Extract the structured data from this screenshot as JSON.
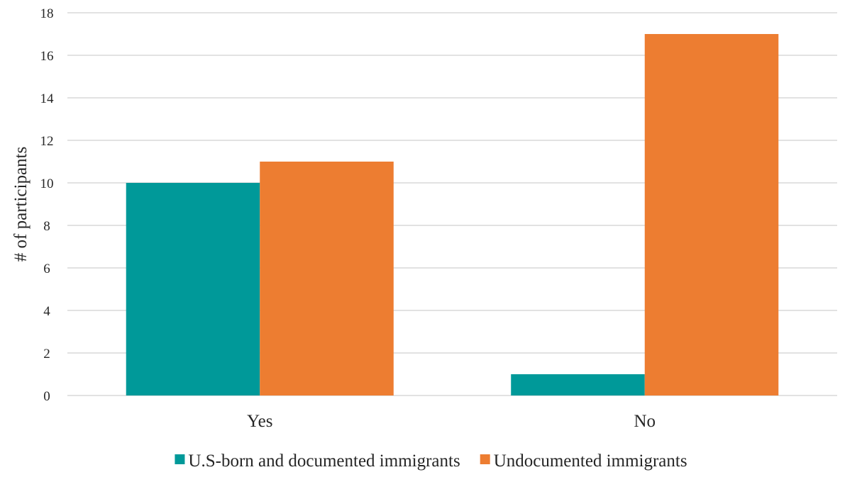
{
  "chart_data": {
    "type": "bar",
    "title": "",
    "xlabel": "",
    "ylabel": "# of participants",
    "ylim": [
      0,
      18
    ],
    "yticks": [
      0,
      2,
      4,
      6,
      8,
      10,
      12,
      14,
      16,
      18
    ],
    "categories": [
      "Yes",
      "No"
    ],
    "series": [
      {
        "name": "U.S-born and documented immigrants",
        "color": "#009999",
        "values": [
          10,
          1
        ]
      },
      {
        "name": "Undocumented immigrants",
        "color": "#ed7d31",
        "values": [
          11,
          17
        ]
      }
    ],
    "grid": true,
    "legend_position": "bottom"
  }
}
